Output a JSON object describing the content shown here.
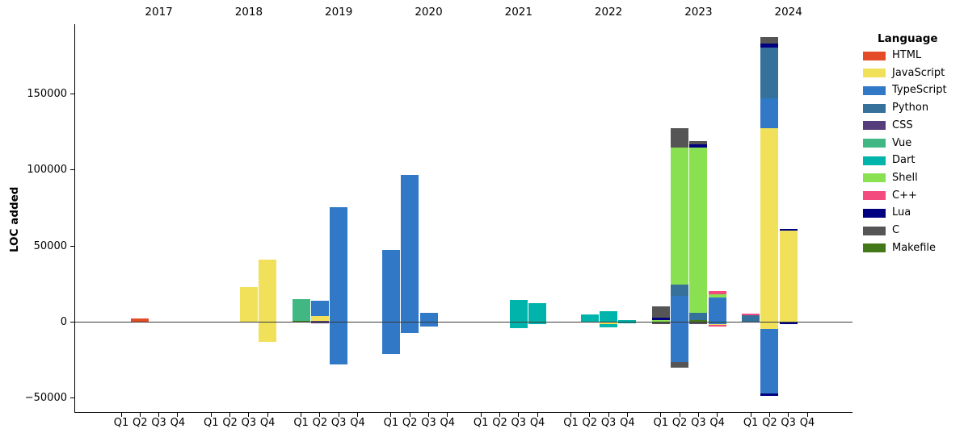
{
  "chart_data": {
    "type": "bar",
    "stacked": true,
    "title": "",
    "ylabel": "LOC added",
    "xlabel": "",
    "grid": false,
    "legend_position": "right",
    "ylim": [
      -59000,
      196000
    ],
    "yticks": [
      {
        "value": -50000,
        "label": "−50000"
      },
      {
        "value": 0,
        "label": "0"
      },
      {
        "value": 50000,
        "label": "50000"
      },
      {
        "value": 100000,
        "label": "100000"
      },
      {
        "value": 150000,
        "label": "150000"
      }
    ],
    "years": [
      "2017",
      "2018",
      "2019",
      "2020",
      "2021",
      "2022",
      "2023",
      "2024"
    ],
    "quarter_labels": [
      "Q1",
      "Q2",
      "Q3",
      "Q4"
    ],
    "bars": [
      {
        "year": "2017",
        "quarter": "Q2",
        "segments": [
          {
            "lang": "HTML",
            "from": 0,
            "to": 2500
          }
        ]
      },
      {
        "year": "2018",
        "quarter": "Q3",
        "segments": [
          {
            "lang": "JavaScript",
            "from": 0,
            "to": 23000
          }
        ]
      },
      {
        "year": "2018",
        "quarter": "Q4",
        "segments": [
          {
            "lang": "JavaScript",
            "from": -12800,
            "to": 41000
          }
        ]
      },
      {
        "year": "2019",
        "quarter": "Q1",
        "segments": [
          {
            "lang": "Makefile",
            "from": 0,
            "to": 600
          },
          {
            "lang": "Vue",
            "from": 600,
            "to": 15000
          }
        ]
      },
      {
        "year": "2019",
        "quarter": "Q2",
        "segments": [
          {
            "lang": "CSS",
            "from": -650,
            "to": 600
          },
          {
            "lang": "JavaScript",
            "from": 600,
            "to": 3800
          },
          {
            "lang": "TypeScript",
            "from": 3800,
            "to": 14000
          }
        ]
      },
      {
        "year": "2019",
        "quarter": "Q3",
        "segments": [
          {
            "lang": "TypeScript",
            "from": -28000,
            "to": 75500
          }
        ]
      },
      {
        "year": "2020",
        "quarter": "Q1",
        "segments": [
          {
            "lang": "TypeScript",
            "from": -21000,
            "to": 47300
          }
        ]
      },
      {
        "year": "2020",
        "quarter": "Q2",
        "segments": [
          {
            "lang": "TypeScript",
            "from": -7300,
            "to": 97000
          }
        ]
      },
      {
        "year": "2020",
        "quarter": "Q3",
        "segments": [
          {
            "lang": "TypeScript",
            "from": -2900,
            "to": 6250
          }
        ]
      },
      {
        "year": "2021",
        "quarter": "Q3",
        "segments": [
          {
            "lang": "Dart",
            "from": -3800,
            "to": 14700
          }
        ]
      },
      {
        "year": "2021",
        "quarter": "Q4",
        "segments": [
          {
            "lang": "Dart",
            "from": -1500,
            "to": 12400
          }
        ]
      },
      {
        "year": "2022",
        "quarter": "Q2",
        "segments": [
          {
            "lang": "Dart",
            "from": 0,
            "to": 5000
          }
        ]
      },
      {
        "year": "2022",
        "quarter": "Q3",
        "segments": [
          {
            "lang": "Dart",
            "from": -3300,
            "to": -1300
          },
          {
            "lang": "JavaScript",
            "from": -1300,
            "to": 0
          },
          {
            "lang": "Dart",
            "from": 0,
            "to": 7200
          }
        ]
      },
      {
        "year": "2022",
        "quarter": "Q4",
        "segments": [
          {
            "lang": "Dart",
            "from": -800,
            "to": 1500
          }
        ]
      },
      {
        "year": "2023",
        "quarter": "Q1",
        "segments": [
          {
            "lang": "C",
            "from": -1500,
            "to": 0
          },
          {
            "lang": "Shell",
            "from": 0,
            "to": 1500
          },
          {
            "lang": "Lua",
            "from": 1500,
            "to": 2900
          },
          {
            "lang": "C",
            "from": 2900,
            "to": 10200
          }
        ]
      },
      {
        "year": "2023",
        "quarter": "Q2",
        "segments": [
          {
            "lang": "C",
            "from": -29800,
            "to": -26300
          },
          {
            "lang": "TypeScript",
            "from": -26300,
            "to": 17400
          },
          {
            "lang": "Python",
            "from": 17400,
            "to": 24500
          },
          {
            "lang": "Shell",
            "from": 24500,
            "to": 114700
          },
          {
            "lang": "C",
            "from": 114700,
            "to": 127500
          }
        ]
      },
      {
        "year": "2023",
        "quarter": "Q3",
        "segments": [
          {
            "lang": "C",
            "from": -1400,
            "to": 0
          },
          {
            "lang": "Makefile",
            "from": 0,
            "to": 1150
          },
          {
            "lang": "Python",
            "from": 1150,
            "to": 6250
          },
          {
            "lang": "Shell",
            "from": 6250,
            "to": 114700
          },
          {
            "lang": "Lua",
            "from": 114700,
            "to": 116700
          },
          {
            "lang": "C",
            "from": 116700,
            "to": 119200
          }
        ]
      },
      {
        "year": "2023",
        "quarter": "Q4",
        "segments": [
          {
            "lang": "C++",
            "from": -3100,
            "to": -2050
          },
          {
            "lang": "JavaScript",
            "from": -2050,
            "to": -1150
          },
          {
            "lang": "TypeScript",
            "from": -1150,
            "to": 16000
          },
          {
            "lang": "Shell",
            "from": 16000,
            "to": 18100
          },
          {
            "lang": "C++",
            "from": 18100,
            "to": 20600
          }
        ]
      },
      {
        "year": "2024",
        "quarter": "Q1",
        "segments": [
          {
            "lang": "Python",
            "from": 0,
            "to": 4350
          },
          {
            "lang": "C++",
            "from": 4350,
            "to": 5700
          }
        ]
      },
      {
        "year": "2024",
        "quarter": "Q2",
        "segments": [
          {
            "lang": "Lua",
            "from": -48300,
            "to": -47000
          },
          {
            "lang": "TypeScript",
            "from": -47000,
            "to": -4300
          },
          {
            "lang": "JavaScript",
            "from": -4300,
            "to": 127400
          },
          {
            "lang": "TypeScript",
            "from": 127400,
            "to": 147300
          },
          {
            "lang": "Python",
            "from": 147300,
            "to": 180500
          },
          {
            "lang": "Lua",
            "from": 180500,
            "to": 183000
          },
          {
            "lang": "C",
            "from": 183000,
            "to": 187500
          }
        ]
      },
      {
        "year": "2024",
        "quarter": "Q3",
        "segments": [
          {
            "lang": "Lua",
            "from": -1200,
            "to": 0
          },
          {
            "lang": "JavaScript",
            "from": 0,
            "to": 60200
          },
          {
            "lang": "Lua",
            "from": 60200,
            "to": 61200
          }
        ]
      }
    ]
  },
  "legend": {
    "title": "Language",
    "items": [
      {
        "label": "HTML",
        "color": "#e34c26"
      },
      {
        "label": "JavaScript",
        "color": "#f1e05a"
      },
      {
        "label": "TypeScript",
        "color": "#3178c6"
      },
      {
        "label": "Python",
        "color": "#35719b"
      },
      {
        "label": "CSS",
        "color": "#563d7c"
      },
      {
        "label": "Vue",
        "color": "#41b883"
      },
      {
        "label": "Dart",
        "color": "#00b4ab"
      },
      {
        "label": "Shell",
        "color": "#89e051"
      },
      {
        "label": "C++",
        "color": "#f34b7d"
      },
      {
        "label": "Lua",
        "color": "#000080"
      },
      {
        "label": "C",
        "color": "#555555"
      },
      {
        "label": "Makefile",
        "color": "#427819"
      }
    ]
  }
}
